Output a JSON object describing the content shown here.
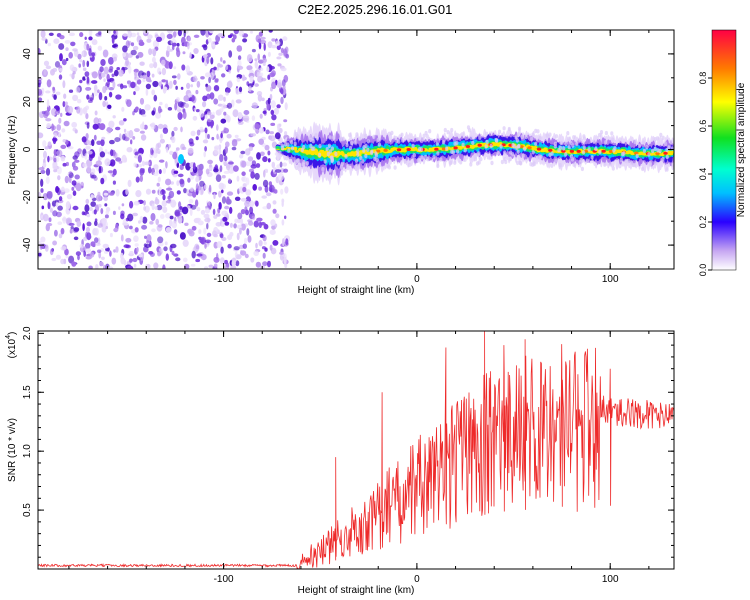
{
  "title": "C2E2.2025.296.16.01.G01",
  "colors": {
    "snr_line": "#ee2a2a",
    "axis": "#000000",
    "background": "#ffffff"
  },
  "chart_data": [
    {
      "type": "heatmap",
      "name": "spectrogram",
      "title": "C2E2.2025.296.16.01.G01",
      "xlabel": "Height of straight line (km)",
      "ylabel": "Frequency (Hz)",
      "xlim": [
        -196,
        133
      ],
      "ylim": [
        -50,
        50
      ],
      "xticks": [
        -100,
        0,
        100
      ],
      "xtick_labels": [
        "-100",
        "0",
        "100"
      ],
      "yticks": [
        -40,
        -20,
        0,
        20,
        40
      ],
      "ytick_labels": [
        "-40",
        "-20",
        "0",
        "20",
        "40"
      ],
      "noise_region_x": [
        -196,
        -67
      ],
      "signal_region_x": [
        -72,
        133
      ],
      "signal_center_freq_hz": 0,
      "colorbar": {
        "label": "Normalized spectral amplitude",
        "range": [
          0,
          1
        ],
        "ticks": [
          0,
          0.2,
          0.4,
          0.6,
          0.8
        ],
        "tick_labels": [
          "0.0",
          "0.2",
          "0.4",
          "0.6",
          "0.8"
        ]
      }
    },
    {
      "type": "line",
      "name": "snr",
      "xlabel": "Height of straight line (km)",
      "ylabel": "SNR (10 * v/v)",
      "y_multiplier_label": "(x10",
      "y_multiplier_exp": "4",
      "y_multiplier_close": ")",
      "xlim": [
        -196,
        133
      ],
      "ylim": [
        0,
        2.02
      ],
      "xticks": [
        -100,
        0,
        100
      ],
      "xtick_labels": [
        "-100",
        "0",
        "100"
      ],
      "yticks": [
        0.5,
        1.0,
        1.5,
        2.0
      ],
      "ytick_labels": [
        "0.5",
        "1.0",
        "1.5",
        "2.0"
      ],
      "series": [
        {
          "name": "SNR",
          "x": [
            -196,
            -150,
            -100,
            -62,
            -55,
            -45,
            -35,
            -25,
            -15,
            -5,
            5,
            15,
            25,
            35,
            45,
            55,
            65,
            75,
            85,
            95,
            105,
            115,
            125,
            133
          ],
          "y": [
            0.03,
            0.03,
            0.03,
            0.03,
            0.12,
            0.22,
            0.35,
            0.45,
            0.58,
            0.7,
            0.82,
            0.95,
            1.05,
            1.15,
            1.22,
            1.25,
            1.3,
            1.32,
            1.33,
            1.35,
            1.33,
            1.32,
            1.3,
            1.28
          ],
          "peaks": [
            {
              "x": -42,
              "y": 0.95
            },
            {
              "x": -18,
              "y": 1.5
            },
            {
              "x": 15,
              "y": 1.88
            },
            {
              "x": 35,
              "y": 2.02
            },
            {
              "x": 45,
              "y": 1.9
            },
            {
              "x": 56,
              "y": 1.95
            },
            {
              "x": 75,
              "y": 1.7
            },
            {
              "x": 100,
              "y": 1.7
            }
          ]
        }
      ]
    }
  ]
}
